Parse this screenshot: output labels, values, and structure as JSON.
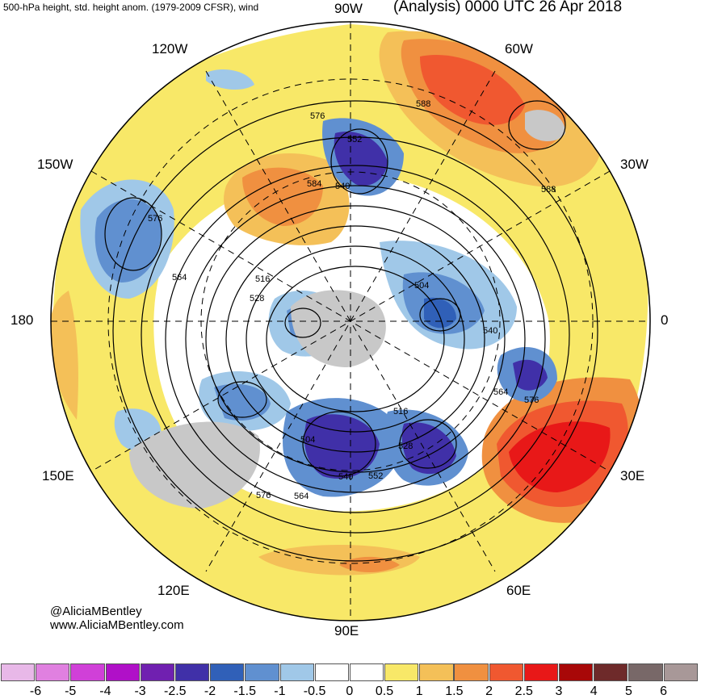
{
  "header": {
    "left_title": "500-hPa height, std. height anom. (1979-2009 CFSR), wind",
    "right_title": "(Analysis) 0000 UTC 26 Apr 2018"
  },
  "longitude_labels": {
    "lon_90w": "90W",
    "lon_120w": "120W",
    "lon_60w": "60W",
    "lon_150w": "150W",
    "lon_30w": "30W",
    "lon_180": "180",
    "lon_0": "0",
    "lon_150e": "150E",
    "lon_30e": "30E",
    "lon_120e": "120E",
    "lon_60e": "60E",
    "lon_90e": "90E"
  },
  "contour_labels": [
    "576",
    "552",
    "584",
    "540",
    "588",
    "588",
    "576",
    "564",
    "516",
    "528",
    "504",
    "540",
    "564",
    "576",
    "516",
    "504",
    "528",
    "540",
    "552",
    "564",
    "576"
  ],
  "credits": {
    "handle": "@AliciaMBentley",
    "website": "www.AliciaMBentley.com"
  },
  "colorbar": {
    "colors": [
      "#e8b8e8",
      "#e080e0",
      "#d040d8",
      "#b010c8",
      "#7020b0",
      "#4030a8",
      "#3060b8",
      "#6090d0",
      "#a0c8e8",
      "#ffffff",
      "#ffffff",
      "#f8e868",
      "#f4c058",
      "#f09040",
      "#f05830",
      "#e81818",
      "#a80808",
      "#6e2a2a",
      "#786868",
      "#a89898"
    ],
    "tick_labels": [
      "-6",
      "-5",
      "-4",
      "-3",
      "-2.5",
      "-2",
      "-1.5",
      "-1",
      "-0.5",
      "0",
      "0.5",
      "1",
      "1.5",
      "2",
      "2.5",
      "3",
      "4",
      "5",
      "6"
    ]
  },
  "map_colors": {
    "land_gray": "#c8c8c8",
    "positive_weak": "#f8e868",
    "positive_mid": "#f4c058",
    "positive_strong": "#f09040",
    "positive_high": "#f05830",
    "positive_max": "#e81818",
    "negative_weak": "#a0c8e8",
    "negative_mid": "#6090d0",
    "negative_strong": "#3060b8",
    "negative_max": "#4030a8"
  }
}
